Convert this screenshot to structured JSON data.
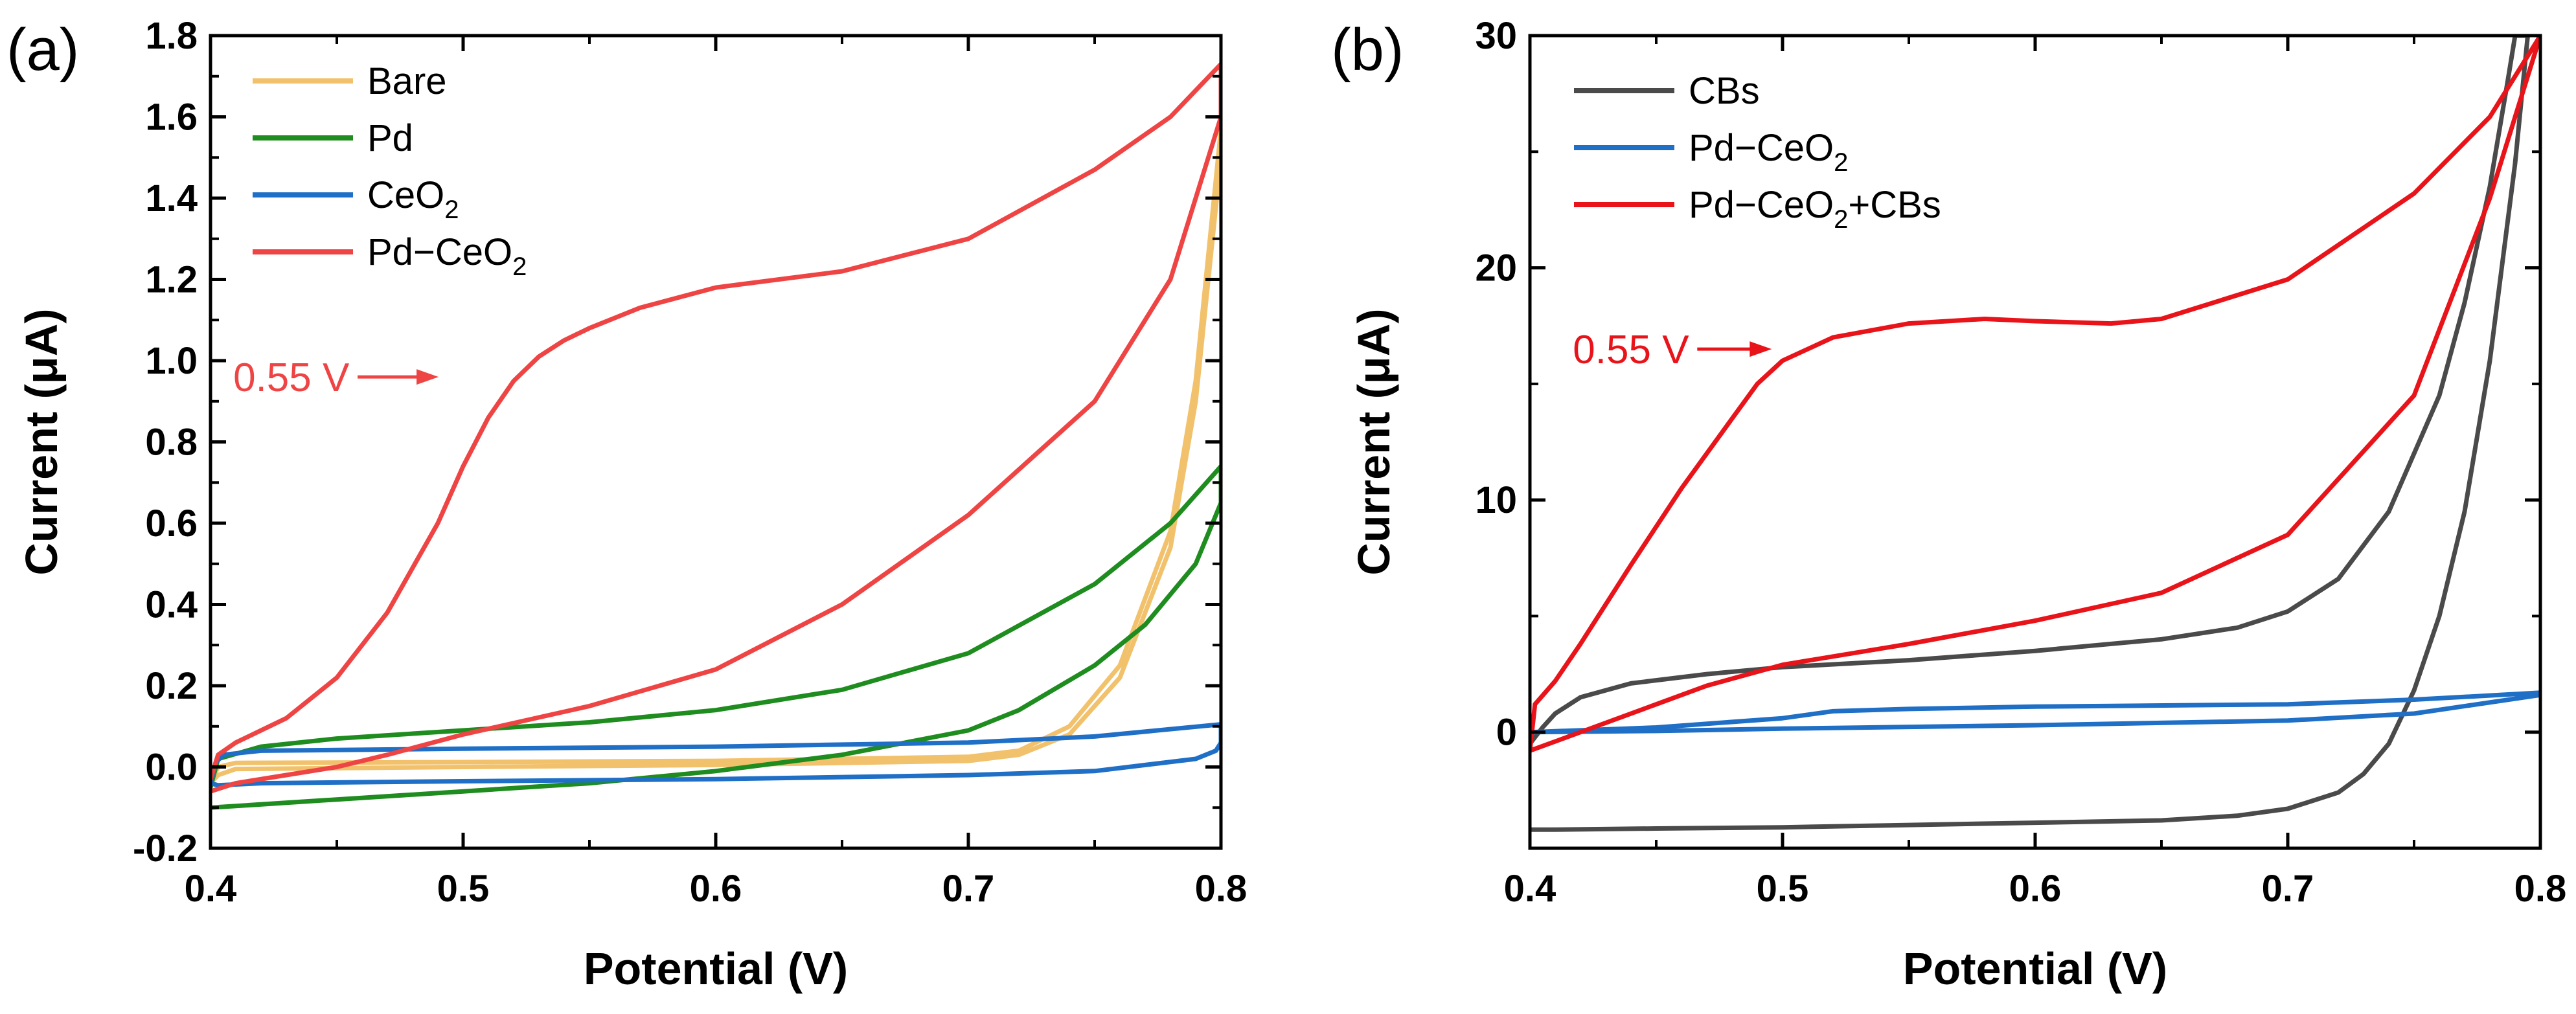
{
  "chart_data": [
    {
      "type": "line",
      "panel_label": "(a)",
      "xlabel": "Potential (V)",
      "ylabel": "Current (μA)",
      "xlim": [
        0.4,
        0.8
      ],
      "ylim": [
        -0.2,
        1.8
      ],
      "xticks": [
        0.4,
        0.5,
        0.6,
        0.7,
        0.8
      ],
      "xtick_labels": [
        "0.4",
        "0.5",
        "0.6",
        "0.7",
        "0.8"
      ],
      "yticks": [
        -0.2,
        0.0,
        0.2,
        0.4,
        0.6,
        0.8,
        1.0,
        1.2,
        1.4,
        1.6,
        1.8
      ],
      "ytick_labels": [
        "-0.2",
        "0.0",
        "0.2",
        "0.4",
        "0.6",
        "0.8",
        "1.0",
        "1.2",
        "1.4",
        "1.6",
        "1.8"
      ],
      "legend_position": "top-left",
      "series": [
        {
          "name": "Bare",
          "legend_main": "Bare",
          "legend_sub": "",
          "legend_suffix": "",
          "color": "#F2C16B",
          "x": [
            0.4,
            0.403,
            0.41,
            0.5,
            0.6,
            0.7,
            0.72,
            0.74,
            0.76,
            0.78,
            0.79,
            0.8,
            0.8,
            0.79,
            0.78,
            0.76,
            0.74,
            0.72,
            0.7,
            0.6,
            0.5,
            0.41,
            0.403,
            0.4
          ],
          "y": [
            -0.04,
            0.0,
            0.01,
            0.012,
            0.015,
            0.025,
            0.04,
            0.1,
            0.25,
            0.58,
            0.95,
            1.57,
            1.5,
            0.9,
            0.54,
            0.22,
            0.08,
            0.03,
            0.015,
            0.005,
            0.0,
            -0.005,
            -0.02,
            -0.04
          ]
        },
        {
          "name": "Pd",
          "legend_main": "Pd",
          "legend_sub": "",
          "legend_suffix": "",
          "color": "#1E8C1E",
          "x": [
            0.4,
            0.403,
            0.42,
            0.45,
            0.5,
            0.55,
            0.6,
            0.65,
            0.7,
            0.75,
            0.78,
            0.8,
            0.8,
            0.79,
            0.77,
            0.75,
            0.72,
            0.7,
            0.65,
            0.6,
            0.55,
            0.5,
            0.45,
            0.4
          ],
          "y": [
            -0.05,
            0.02,
            0.05,
            0.07,
            0.09,
            0.11,
            0.14,
            0.19,
            0.28,
            0.45,
            0.6,
            0.74,
            0.65,
            0.5,
            0.35,
            0.25,
            0.14,
            0.09,
            0.03,
            -0.01,
            -0.04,
            -0.06,
            -0.08,
            -0.1
          ]
        },
        {
          "name": "CeO2",
          "legend_main": "CeO",
          "legend_sub": "2",
          "legend_suffix": "",
          "color": "#1F6FC6",
          "x": [
            0.4,
            0.402,
            0.405,
            0.42,
            0.5,
            0.6,
            0.7,
            0.75,
            0.8,
            0.8,
            0.798,
            0.79,
            0.75,
            0.7,
            0.6,
            0.5,
            0.42,
            0.403,
            0.4
          ],
          "y": [
            -0.04,
            0.01,
            0.03,
            0.04,
            0.045,
            0.05,
            0.06,
            0.075,
            0.105,
            0.06,
            0.04,
            0.02,
            -0.01,
            -0.02,
            -0.03,
            -0.035,
            -0.04,
            -0.045,
            -0.04
          ]
        },
        {
          "name": "Pd-CeO2",
          "legend_main": "Pd−CeO",
          "legend_sub": "2",
          "legend_suffix": "",
          "color": "#EF4444",
          "x": [
            0.4,
            0.403,
            0.41,
            0.43,
            0.45,
            0.47,
            0.49,
            0.5,
            0.51,
            0.52,
            0.53,
            0.54,
            0.55,
            0.57,
            0.6,
            0.65,
            0.7,
            0.75,
            0.78,
            0.8,
            0.8,
            0.78,
            0.75,
            0.7,
            0.65,
            0.6,
            0.55,
            0.5,
            0.47,
            0.45,
            0.43,
            0.41,
            0.4
          ],
          "y": [
            -0.03,
            0.03,
            0.06,
            0.12,
            0.22,
            0.38,
            0.6,
            0.74,
            0.86,
            0.95,
            1.01,
            1.05,
            1.08,
            1.13,
            1.18,
            1.22,
            1.3,
            1.47,
            1.6,
            1.73,
            1.6,
            1.2,
            0.9,
            0.62,
            0.4,
            0.24,
            0.15,
            0.08,
            0.03,
            0.0,
            -0.02,
            -0.04,
            -0.06
          ]
        }
      ],
      "annotations": [
        {
          "text": "0.55 V",
          "x": 0.409,
          "y": 0.96,
          "color": "#EF4444"
        }
      ]
    },
    {
      "type": "line",
      "panel_label": "(b)",
      "xlabel": "Potential (V)",
      "ylabel": "Current (μA)",
      "xlim": [
        0.4,
        0.8
      ],
      "ylim": [
        -5,
        30
      ],
      "xticks": [
        0.4,
        0.5,
        0.6,
        0.7,
        0.8
      ],
      "xtick_labels": [
        "0.4",
        "0.5",
        "0.6",
        "0.7",
        "0.8"
      ],
      "yticks": [
        0,
        10,
        20,
        30
      ],
      "ytick_labels": [
        "0",
        "10",
        "20",
        "30"
      ],
      "legend_position": "top-left",
      "series": [
        {
          "name": "CBs",
          "legend_main": "CBs",
          "legend_sub": "",
          "legend_suffix": "",
          "color": "#4A4A4A",
          "x": [
            0.4,
            0.405,
            0.41,
            0.42,
            0.44,
            0.47,
            0.5,
            0.55,
            0.6,
            0.65,
            0.68,
            0.7,
            0.72,
            0.74,
            0.76,
            0.77,
            0.78,
            0.787,
            0.79,
            0.795,
            0.79,
            0.78,
            0.77,
            0.76,
            0.75,
            0.74,
            0.73,
            0.72,
            0.7,
            0.68,
            0.65,
            0.6,
            0.5,
            0.45,
            0.41,
            0.4
          ],
          "y": [
            -0.5,
            0.2,
            0.8,
            1.5,
            2.1,
            2.5,
            2.8,
            3.1,
            3.5,
            4.0,
            4.5,
            5.2,
            6.6,
            9.5,
            14.5,
            18.5,
            23.5,
            28.0,
            30.0,
            30.0,
            24.5,
            16.0,
            9.5,
            5.0,
            1.8,
            -0.5,
            -1.8,
            -2.6,
            -3.3,
            -3.6,
            -3.8,
            -3.9,
            -4.1,
            -4.15,
            -4.2,
            -4.2
          ]
        },
        {
          "name": "Pd-CeO2",
          "legend_main": "Pd−CeO",
          "legend_sub": "2",
          "legend_suffix": "",
          "color": "#1F6FC6",
          "x": [
            0.4,
            0.45,
            0.5,
            0.52,
            0.55,
            0.6,
            0.7,
            0.75,
            0.8,
            0.8,
            0.75,
            0.7,
            0.6,
            0.5,
            0.45,
            0.4
          ],
          "y": [
            0.0,
            0.2,
            0.6,
            0.9,
            1.0,
            1.1,
            1.2,
            1.4,
            1.7,
            1.6,
            0.8,
            0.5,
            0.3,
            0.15,
            0.05,
            0.0
          ]
        },
        {
          "name": "Pd-CeO2+CBs",
          "legend_main": "Pd−CeO",
          "legend_sub": "2",
          "legend_suffix": "+CBs",
          "color": "#E8141A",
          "x": [
            0.4,
            0.402,
            0.41,
            0.42,
            0.44,
            0.46,
            0.48,
            0.49,
            0.5,
            0.52,
            0.55,
            0.58,
            0.6,
            0.63,
            0.65,
            0.7,
            0.75,
            0.78,
            0.8,
            0.8,
            0.78,
            0.75,
            0.7,
            0.65,
            0.6,
            0.55,
            0.5,
            0.47,
            0.45,
            0.43,
            0.41,
            0.4
          ],
          "y": [
            -0.8,
            1.2,
            2.2,
            3.8,
            7.2,
            10.5,
            13.5,
            15.0,
            16.0,
            17.0,
            17.6,
            17.8,
            17.7,
            17.6,
            17.8,
            19.5,
            23.2,
            26.5,
            30.0,
            30.0,
            23.0,
            14.5,
            8.5,
            6.0,
            4.8,
            3.8,
            2.9,
            2.0,
            1.2,
            0.4,
            -0.4,
            -0.8
          ]
        }
      ],
      "annotations": [
        {
          "text": "0.55 V",
          "x": 0.417,
          "y": 16.5,
          "color": "#E8141A"
        }
      ]
    }
  ]
}
